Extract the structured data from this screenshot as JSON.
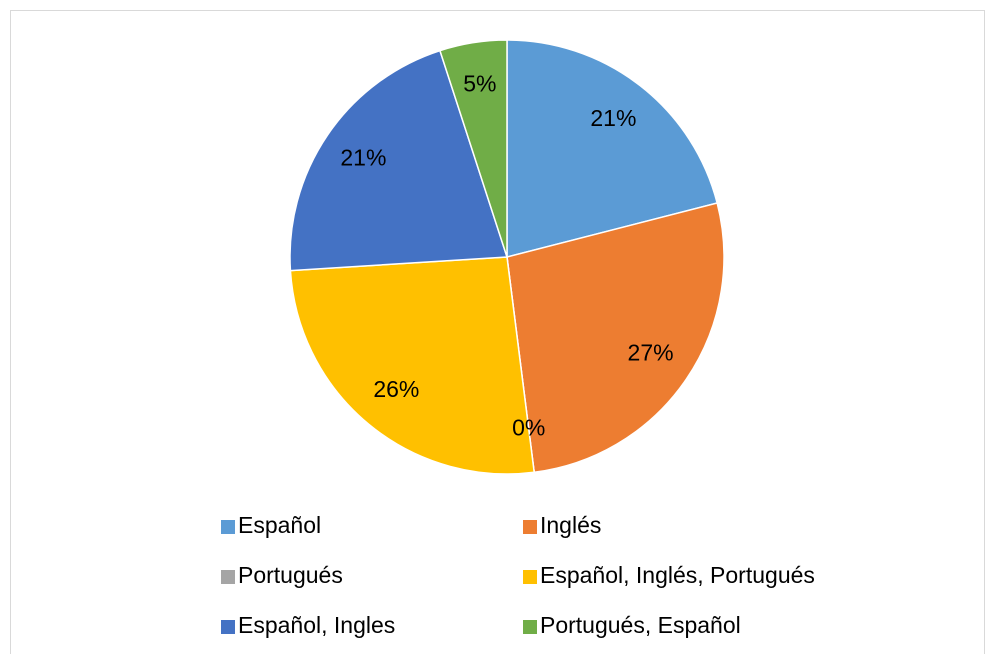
{
  "chart_data": {
    "type": "pie",
    "categories": [
      "Español",
      "Inglés",
      "Portugués",
      "Español, Inglés, Portugués",
      "Español, Ingles",
      "Portugués, Español"
    ],
    "values": [
      21,
      27,
      0,
      26,
      21,
      5
    ],
    "value_labels": [
      "21%",
      "27%",
      "0%",
      "26%",
      "21%",
      "5%"
    ],
    "colors": [
      "#5b9bd5",
      "#ed7d31",
      "#a5a5a5",
      "#ffc000",
      "#4472c4",
      "#70ad47"
    ],
    "legend": "bottom"
  }
}
